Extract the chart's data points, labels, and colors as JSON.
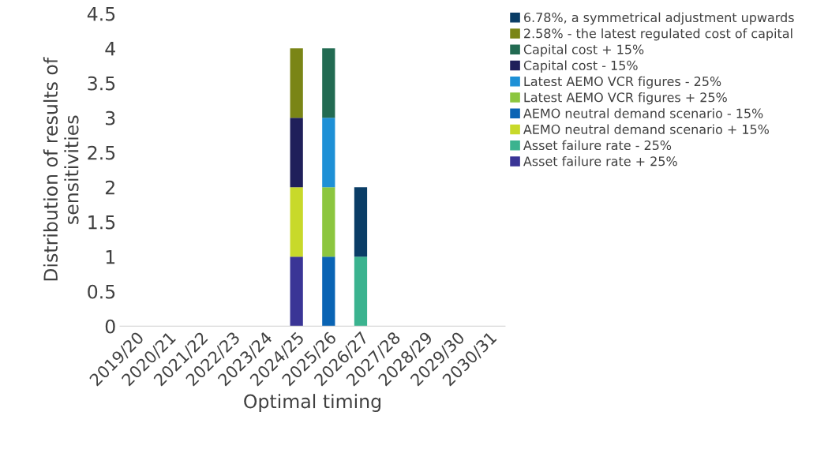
{
  "chart_data": {
    "type": "bar",
    "stacked": true,
    "xlabel": "Optimal timing",
    "ylabel": "Distribution of results of sensitivities",
    "categories": [
      "2019/20",
      "2020/21",
      "2021/22",
      "2022/23",
      "2023/24",
      "2024/25",
      "2025/26",
      "2026/27",
      "2027/28",
      "2028/29",
      "2029/30",
      "2030/31"
    ],
    "series": [
      {
        "name": "Asset failure rate + 25%",
        "color": "#3a3596",
        "values": [
          0,
          0,
          0,
          0,
          0,
          1,
          0,
          0,
          0,
          0,
          0,
          0
        ]
      },
      {
        "name": "Asset failure rate - 25%",
        "color": "#3bb38f",
        "values": [
          0,
          0,
          0,
          0,
          0,
          0,
          0,
          1,
          0,
          0,
          0,
          0
        ]
      },
      {
        "name": "AEMO neutral demand scenario + 15%",
        "color": "#c8d92a",
        "values": [
          0,
          0,
          0,
          0,
          0,
          1,
          0,
          0,
          0,
          0,
          0,
          0
        ]
      },
      {
        "name": "AEMO neutral demand scenario - 15%",
        "color": "#0a64b4",
        "values": [
          0,
          0,
          0,
          0,
          0,
          0,
          1,
          0,
          0,
          0,
          0,
          0
        ]
      },
      {
        "name": "Latest AEMO VCR figures + 25%",
        "color": "#8cc63f",
        "values": [
          0,
          0,
          0,
          0,
          0,
          0,
          1,
          0,
          0,
          0,
          0,
          0
        ]
      },
      {
        "name": "Latest AEMO VCR figures - 25%",
        "color": "#1e90d6",
        "values": [
          0,
          0,
          0,
          0,
          0,
          0,
          1,
          0,
          0,
          0,
          0,
          0
        ]
      },
      {
        "name": "Capital cost - 15%",
        "color": "#1f1f5a",
        "values": [
          0,
          0,
          0,
          0,
          0,
          1,
          0,
          0,
          0,
          0,
          0,
          0
        ]
      },
      {
        "name": "Capital cost + 15%",
        "color": "#226b52",
        "values": [
          0,
          0,
          0,
          0,
          0,
          0,
          1,
          0,
          0,
          0,
          0,
          0
        ]
      },
      {
        "name": "2.58% - the latest regulated cost of capital",
        "color": "#7a8516",
        "values": [
          0,
          0,
          0,
          0,
          0,
          1,
          0,
          0,
          0,
          0,
          0,
          0
        ]
      },
      {
        "name": "6.78%, a symmetrical adjustment upwards",
        "color": "#0a3d66",
        "values": [
          0,
          0,
          0,
          0,
          0,
          0,
          0,
          1,
          0,
          0,
          0,
          0
        ]
      }
    ],
    "ylim": [
      0,
      4.5
    ],
    "yticks": [
      0,
      0.5,
      1,
      1.5,
      2,
      2.5,
      3,
      3.5,
      4,
      4.5
    ],
    "grid": false,
    "legend": "top right"
  }
}
